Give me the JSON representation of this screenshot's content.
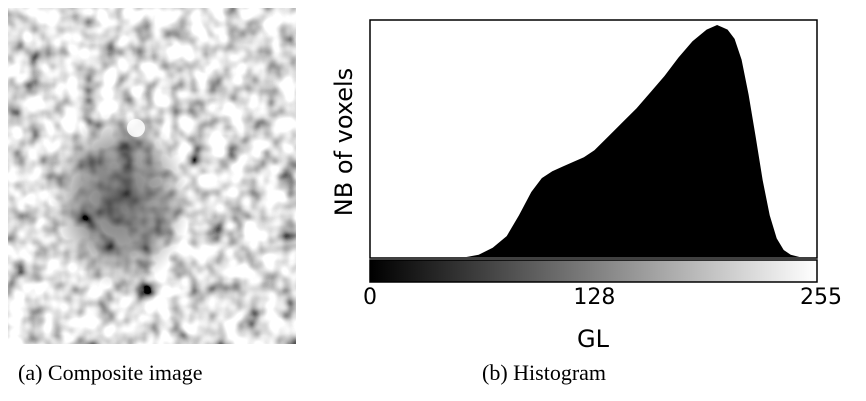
{
  "panel_a": {
    "caption": "(a) Composite image"
  },
  "panel_b": {
    "caption": "(b) Histogram"
  },
  "chart_data": {
    "type": "area",
    "title": "",
    "xlabel": "GL",
    "ylabel": "NB of voxels",
    "xlim": [
      0,
      255
    ],
    "x_ticks": [
      "0",
      "128",
      "255"
    ],
    "y_ticks": [],
    "colorbar": "grayscale 0–255",
    "fill_color": "#000000",
    "x": [
      0,
      55,
      62,
      70,
      78,
      85,
      92,
      98,
      104,
      110,
      116,
      122,
      128,
      136,
      144,
      152,
      160,
      168,
      176,
      184,
      192,
      198,
      201,
      204,
      208,
      212,
      216,
      220,
      224,
      228,
      232,
      236,
      240,
      245,
      255
    ],
    "values": [
      0,
      0,
      1,
      4,
      9,
      18,
      28,
      34,
      37,
      39,
      41,
      43,
      46,
      52,
      58,
      64,
      71,
      78,
      86,
      93,
      98,
      100,
      99,
      98,
      94,
      85,
      70,
      52,
      33,
      18,
      8,
      3,
      1,
      0,
      0
    ]
  }
}
